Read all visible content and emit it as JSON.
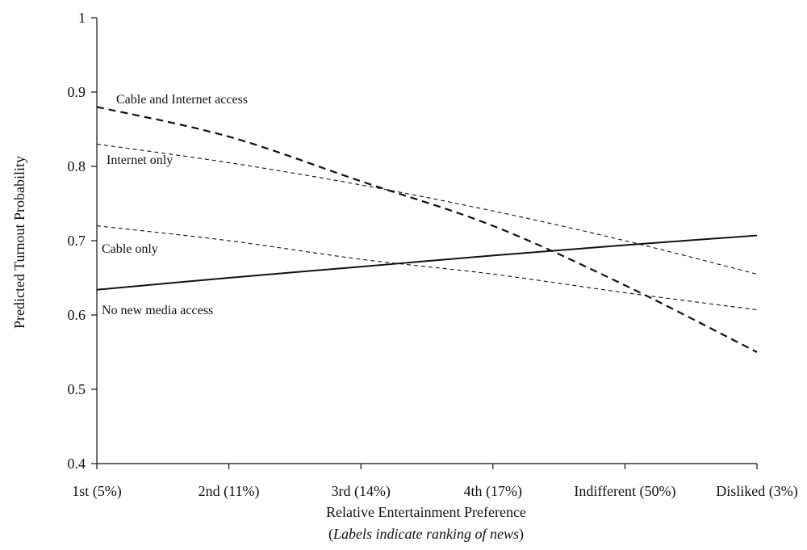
{
  "chart_data": {
    "type": "line",
    "title": "",
    "ylabel": "Predicted Turnout Probability",
    "xlabel": "Relative Entertainment Preference",
    "xlabel_sub": "(Labels indicate ranking of news)",
    "xlabel_sub_italic": "Labels indicate ranking of news",
    "ylim": [
      0.4,
      1.0
    ],
    "yticks": [
      0.4,
      0.5,
      0.6,
      0.7,
      0.8,
      0.9,
      1.0
    ],
    "ytick_labels": [
      "0.4",
      "0.5",
      "0.6",
      "0.7",
      "0.8",
      "0.9",
      "1"
    ],
    "categories": [
      "1st (5%)",
      "2nd (11%)",
      "3rd (14%)",
      "4th (17%)",
      "Indifferent (50%)",
      "Disliked (3%)"
    ],
    "grid": false,
    "legend": "inline labels near left end of each line",
    "series": [
      {
        "name": "Cable and Internet access",
        "style": "long-dash",
        "color": "#111111",
        "values": [
          0.88,
          0.84,
          0.78,
          0.72,
          0.64,
          0.55
        ]
      },
      {
        "name": "Internet only",
        "style": "short-dash",
        "color": "#111111",
        "values": [
          0.83,
          0.805,
          0.775,
          0.74,
          0.7,
          0.655
        ]
      },
      {
        "name": "Cable only",
        "style": "short-dash",
        "color": "#111111",
        "values": [
          0.72,
          0.7,
          0.675,
          0.655,
          0.63,
          0.607
        ]
      },
      {
        "name": "No new media access",
        "style": "solid",
        "color": "#111111",
        "values": [
          0.634,
          0.65,
          0.665,
          0.68,
          0.694,
          0.707
        ]
      }
    ]
  }
}
